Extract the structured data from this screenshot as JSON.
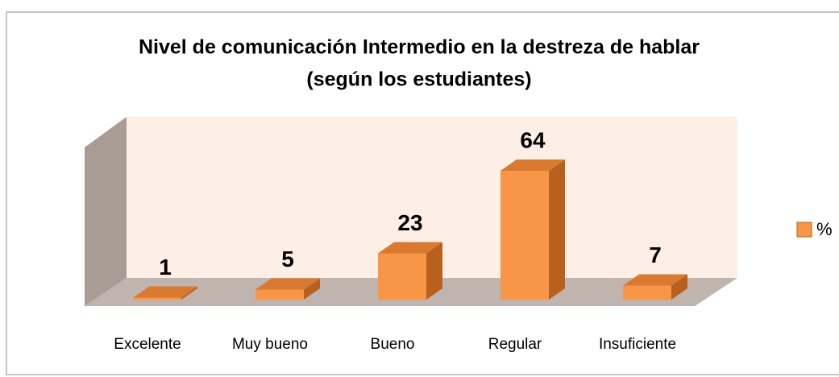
{
  "chart_data": {
    "type": "bar3d",
    "title": "Nivel de comunicación Intermedio en la destreza de hablar",
    "subtitle": "(según los estudiantes)",
    "categories": [
      "Excelente",
      "Muy bueno",
      "Bueno",
      "Regular",
      "Insuficiente"
    ],
    "series": [
      {
        "name": "%",
        "color": "#f79646",
        "values": [
          1,
          5,
          23,
          64,
          7
        ]
      }
    ],
    "legend": "right"
  }
}
